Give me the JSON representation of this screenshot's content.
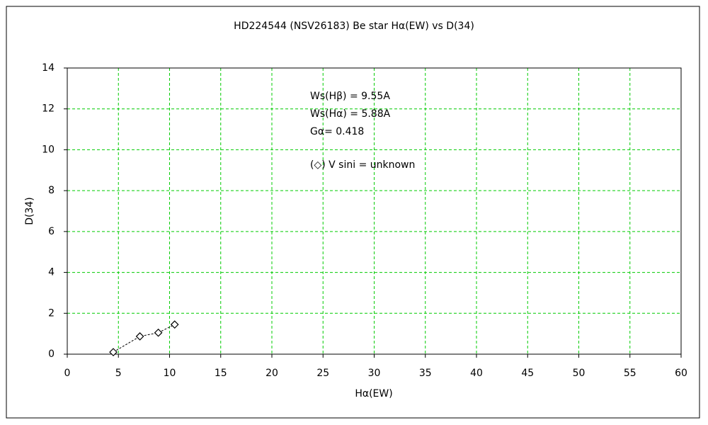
{
  "chart_data": {
    "type": "scatter",
    "title": "HD224544 (NSV26183)    Be star    Hα(EW) vs D(34)",
    "x_label": "Hα(EW)",
    "y_label": "D(34)",
    "annotations": [
      "Ws(Hβ) = 9.55A",
      "Ws(Hα) = 5.88A",
      "Gα= 0.418",
      "(◇) V sini = unknown"
    ],
    "x": [
      4.5,
      7.1,
      8.9,
      10.5
    ],
    "values": [
      0.1,
      0.87,
      1.05,
      1.45
    ],
    "color": "#000000",
    "marker": "diamond",
    "line_style": "dashed",
    "xlim": [
      0,
      60
    ],
    "xticks": [
      0,
      5,
      10,
      15,
      20,
      25,
      30,
      35,
      40,
      45,
      50,
      55,
      60
    ],
    "ylim": [
      0,
      14
    ],
    "yticks": [
      0,
      2,
      4,
      6,
      8,
      10,
      12,
      14
    ],
    "grid": true,
    "grid_color": "#00cc00"
  }
}
